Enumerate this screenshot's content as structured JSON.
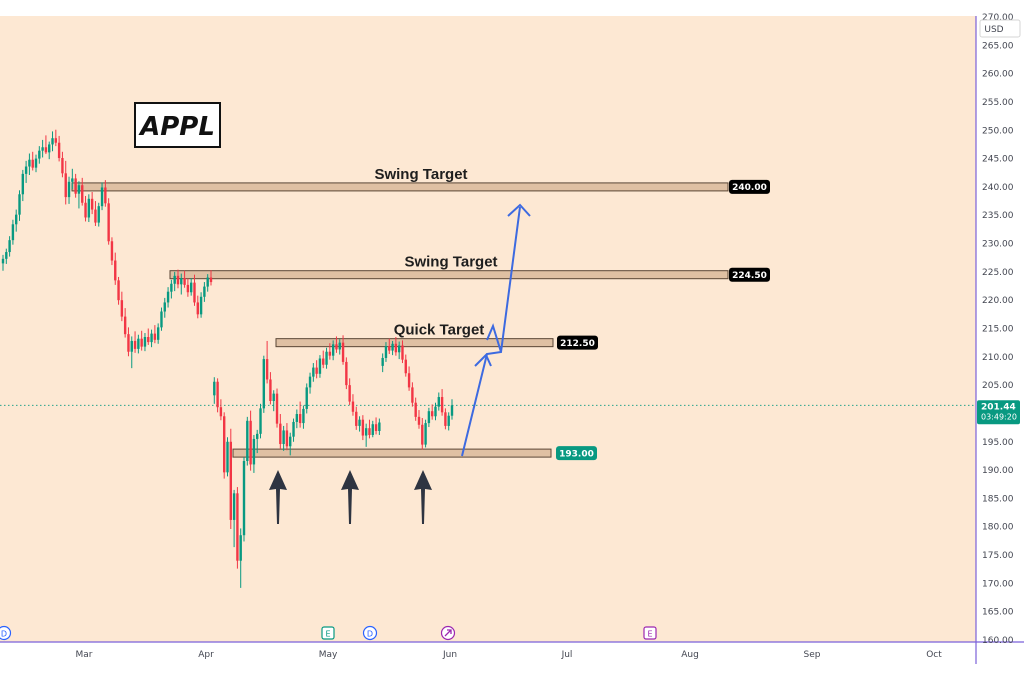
{
  "chart_data": {
    "type": "candlestick",
    "title": "APPL",
    "currency": "USD",
    "ylim": [
      160,
      270
    ],
    "y_ticks": [
      "270.00",
      "265.00",
      "260.00",
      "255.00",
      "250.00",
      "245.00",
      "240.00",
      "235.00",
      "230.00",
      "225.00",
      "220.00",
      "215.00",
      "210.00",
      "205.00",
      "200.00",
      "195.00",
      "190.00",
      "185.00",
      "180.00",
      "175.00",
      "170.00",
      "165.00",
      "160.00"
    ],
    "x_ticks": [
      "Mar",
      "Apr",
      "May",
      "Jun",
      "Jul",
      "Aug",
      "Sep",
      "Oct"
    ],
    "last_price": {
      "value": "201.44",
      "countdown": "03:49:20",
      "color": "#089981"
    },
    "levels": [
      {
        "label": "Swing Target",
        "value": 240.0,
        "badge": "240.00",
        "badge_color": "#000000"
      },
      {
        "label": "Swing Target",
        "value": 224.5,
        "badge": "224.50",
        "badge_color": "#000000"
      },
      {
        "label": "Quick Target",
        "value": 212.5,
        "badge": "212.50",
        "badge_color": "#000000"
      },
      {
        "label": "",
        "value": 193.0,
        "badge": "193.00",
        "badge_color": "#089981"
      }
    ],
    "event_markers": [
      "D",
      "E",
      "D",
      "",
      "E"
    ],
    "colors": {
      "background": "#fde8d3",
      "up": "#089981",
      "down": "#f23645",
      "projection": "#3d6ae0",
      "zone": "#d9b89a",
      "divider": "#7b61d9"
    },
    "candles": [
      [
        226.5,
        228.0,
        225.2,
        227.3
      ],
      [
        227.3,
        229.1,
        226.4,
        228.5
      ],
      [
        228.5,
        231.3,
        227.7,
        230.6
      ],
      [
        230.6,
        234.2,
        229.8,
        233.4
      ],
      [
        233.4,
        236.0,
        232.1,
        235.1
      ],
      [
        235.1,
        239.4,
        234.0,
        238.7
      ],
      [
        238.7,
        243.0,
        237.5,
        242.3
      ],
      [
        242.3,
        244.6,
        240.7,
        243.6
      ],
      [
        243.6,
        245.9,
        242.1,
        244.8
      ],
      [
        244.8,
        246.2,
        242.9,
        243.4
      ],
      [
        243.4,
        245.7,
        242.6,
        245.0
      ],
      [
        245.0,
        247.2,
        244.1,
        246.4
      ],
      [
        246.4,
        248.3,
        245.2,
        247.0
      ],
      [
        247.0,
        249.1,
        245.8,
        246.1
      ],
      [
        246.1,
        248.0,
        244.9,
        247.5
      ],
      [
        247.5,
        249.8,
        246.3,
        248.6
      ],
      [
        248.6,
        250.1,
        247.2,
        247.8
      ],
      [
        247.8,
        249.0,
        244.5,
        245.1
      ],
      [
        245.1,
        246.2,
        241.7,
        242.4
      ],
      [
        242.4,
        244.6,
        236.9,
        238.2
      ],
      [
        238.2,
        241.8,
        237.0,
        240.9
      ],
      [
        240.9,
        243.2,
        239.6,
        241.5
      ],
      [
        241.5,
        242.3,
        238.1,
        238.8
      ],
      [
        238.8,
        241.0,
        236.2,
        240.3
      ],
      [
        240.3,
        241.6,
        236.7,
        237.2
      ],
      [
        237.2,
        238.4,
        233.9,
        234.6
      ],
      [
        234.6,
        238.7,
        233.8,
        237.9
      ],
      [
        237.9,
        239.1,
        235.2,
        236.0
      ],
      [
        236.0,
        237.5,
        233.1,
        233.7
      ],
      [
        233.7,
        237.2,
        233.0,
        236.6
      ],
      [
        236.6,
        240.8,
        235.9,
        239.9
      ],
      [
        239.9,
        241.2,
        236.5,
        237.1
      ],
      [
        237.1,
        238.0,
        229.8,
        230.4
      ],
      [
        230.4,
        231.1,
        226.2,
        227.0
      ],
      [
        227.0,
        228.4,
        222.7,
        223.5
      ],
      [
        223.5,
        224.1,
        219.2,
        220.0
      ],
      [
        220.0,
        221.5,
        216.3,
        217.1
      ],
      [
        217.1,
        218.6,
        213.4,
        214.0
      ],
      [
        214.0,
        215.2,
        210.1,
        210.9
      ],
      [
        210.9,
        213.6,
        208.0,
        212.8
      ],
      [
        212.8,
        214.5,
        210.7,
        211.4
      ],
      [
        211.4,
        213.9,
        210.6,
        213.2
      ],
      [
        213.2,
        214.6,
        211.1,
        211.8
      ],
      [
        211.8,
        214.2,
        211.0,
        213.5
      ],
      [
        213.5,
        215.0,
        212.1,
        212.6
      ],
      [
        212.6,
        214.8,
        211.7,
        214.1
      ],
      [
        214.1,
        215.6,
        212.4,
        213.0
      ],
      [
        213.0,
        215.9,
        212.3,
        215.2
      ],
      [
        215.2,
        218.7,
        214.6,
        218.0
      ],
      [
        218.0,
        220.4,
        216.9,
        219.6
      ],
      [
        219.6,
        222.3,
        218.7,
        221.5
      ],
      [
        221.5,
        223.6,
        220.3,
        222.9
      ],
      [
        222.9,
        225.0,
        221.6,
        224.3
      ],
      [
        224.3,
        225.4,
        222.1,
        222.8
      ],
      [
        222.8,
        224.7,
        221.0,
        223.9
      ],
      [
        223.9,
        225.2,
        222.2,
        222.7
      ],
      [
        222.7,
        223.8,
        220.6,
        221.4
      ],
      [
        221.4,
        223.9,
        220.8,
        223.1
      ],
      [
        223.1,
        224.5,
        219.0,
        219.6
      ],
      [
        219.6,
        220.8,
        216.8,
        217.5
      ],
      [
        217.5,
        221.4,
        216.9,
        220.6
      ],
      [
        220.6,
        223.2,
        219.7,
        222.4
      ],
      [
        222.4,
        224.6,
        221.5,
        224.0
      ],
      [
        224.0,
        225.3,
        222.6,
        223.2
      ],
      [
        203.2,
        206.4,
        201.7,
        205.6
      ],
      [
        205.6,
        206.2,
        200.2,
        201.1
      ],
      [
        201.1,
        202.5,
        198.8,
        199.5
      ],
      [
        199.5,
        200.2,
        188.5,
        189.6
      ],
      [
        189.6,
        195.8,
        188.9,
        195.0
      ],
      [
        195.0,
        197.3,
        179.6,
        181.2
      ],
      [
        181.2,
        186.5,
        176.4,
        185.9
      ],
      [
        185.9,
        187.0,
        172.6,
        174.0
      ],
      [
        174.0,
        179.7,
        169.2,
        178.5
      ],
      [
        178.5,
        192.3,
        177.4,
        191.6
      ],
      [
        191.6,
        199.4,
        190.8,
        198.7
      ],
      [
        198.7,
        200.5,
        189.9,
        191.0
      ],
      [
        191.0,
        196.2,
        189.5,
        195.5
      ],
      [
        195.5,
        197.1,
        193.0,
        196.4
      ],
      [
        196.4,
        201.7,
        195.6,
        200.9
      ],
      [
        200.9,
        210.2,
        200.1,
        209.6
      ],
      [
        209.6,
        212.8,
        205.3,
        206.0
      ],
      [
        206.0,
        207.3,
        201.6,
        202.2
      ],
      [
        202.2,
        204.1,
        200.4,
        203.5
      ],
      [
        203.5,
        204.4,
        197.5,
        198.2
      ],
      [
        198.2,
        199.9,
        193.7,
        194.6
      ],
      [
        194.6,
        197.8,
        193.4,
        197.0
      ],
      [
        197.0,
        198.3,
        193.5,
        194.2
      ],
      [
        194.2,
        196.6,
        192.6,
        195.9
      ],
      [
        195.9,
        199.1,
        195.0,
        198.5
      ],
      [
        198.5,
        200.7,
        197.4,
        199.9
      ],
      [
        199.9,
        202.1,
        197.5,
        198.3
      ],
      [
        198.3,
        201.4,
        197.3,
        200.8
      ],
      [
        200.8,
        205.3,
        200.0,
        204.6
      ],
      [
        204.6,
        207.2,
        203.5,
        206.5
      ],
      [
        206.5,
        208.9,
        205.6,
        208.1
      ],
      [
        208.1,
        209.4,
        206.2,
        207.0
      ],
      [
        207.0,
        210.3,
        206.3,
        209.7
      ],
      [
        209.7,
        211.1,
        208.0,
        208.6
      ],
      [
        208.6,
        211.6,
        207.9,
        210.9
      ],
      [
        210.9,
        212.4,
        209.5,
        210.2
      ],
      [
        210.2,
        212.9,
        209.4,
        212.2
      ],
      [
        212.2,
        213.6,
        210.7,
        211.3
      ],
      [
        211.3,
        213.1,
        210.4,
        212.5
      ],
      [
        212.5,
        213.8,
        208.6,
        209.1
      ],
      [
        209.1,
        209.9,
        204.3,
        205.0
      ],
      [
        205.0,
        206.2,
        201.5,
        202.1
      ],
      [
        202.1,
        203.4,
        199.6,
        200.3
      ],
      [
        200.3,
        201.2,
        197.1,
        197.8
      ],
      [
        197.8,
        199.5,
        196.8,
        198.9
      ],
      [
        198.9,
        199.7,
        195.3,
        196.1
      ],
      [
        196.1,
        198.2,
        194.1,
        197.4
      ],
      [
        197.4,
        198.9,
        195.6,
        196.2
      ],
      [
        196.2,
        198.7,
        195.8,
        198.1
      ],
      [
        198.1,
        199.3,
        196.3,
        196.9
      ],
      [
        196.9,
        199.1,
        196.2,
        198.4
      ],
      [
        208.4,
        210.6,
        207.3,
        209.8
      ],
      [
        209.8,
        212.6,
        209.1,
        211.9
      ],
      [
        211.9,
        213.2,
        210.5,
        211.1
      ],
      [
        211.1,
        212.8,
        210.3,
        212.3
      ],
      [
        212.3,
        213.5,
        210.2,
        210.8
      ],
      [
        210.8,
        212.7,
        209.6,
        212.0
      ],
      [
        212.0,
        212.9,
        208.9,
        209.5
      ],
      [
        209.5,
        210.4,
        206.5,
        207.1
      ],
      [
        207.1,
        208.3,
        204.0,
        204.6
      ],
      [
        204.6,
        205.5,
        201.2,
        201.9
      ],
      [
        201.9,
        202.8,
        198.7,
        199.4
      ],
      [
        199.4,
        200.6,
        197.3,
        198.0
      ],
      [
        198.0,
        199.2,
        193.6,
        194.5
      ],
      [
        194.5,
        198.9,
        194.0,
        198.3
      ],
      [
        198.3,
        201.0,
        197.6,
        200.4
      ],
      [
        200.4,
        201.6,
        198.9,
        199.5
      ],
      [
        199.5,
        201.9,
        198.8,
        201.2
      ],
      [
        201.2,
        203.7,
        200.5,
        202.9
      ],
      [
        202.9,
        204.3,
        199.6,
        200.2
      ],
      [
        200.2,
        200.9,
        197.2,
        197.8
      ],
      [
        197.8,
        200.2,
        197.0,
        199.6
      ],
      [
        199.6,
        202.5,
        198.9,
        201.44
      ]
    ]
  }
}
